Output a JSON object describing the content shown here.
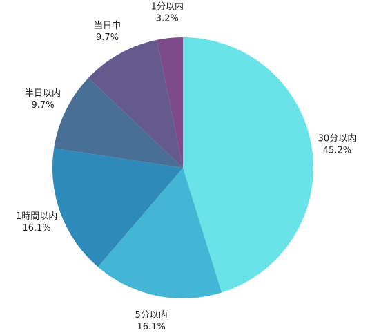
{
  "chart_data": {
    "type": "pie",
    "categories": [
      "30分以内",
      "5分以内",
      "1時間以内",
      "半日以内",
      "当日中",
      "1分以内"
    ],
    "values": [
      45.2,
      16.1,
      16.1,
      9.7,
      9.7,
      3.2
    ],
    "value_labels": [
      "45.2%",
      "16.1%",
      "16.1%",
      "9.7%",
      "9.7%",
      "3.2%"
    ],
    "colors": [
      "#6ae3e8",
      "#42b6d4",
      "#2e8ab8",
      "#4a6f96",
      "#655a8e",
      "#7d4a8a"
    ]
  }
}
